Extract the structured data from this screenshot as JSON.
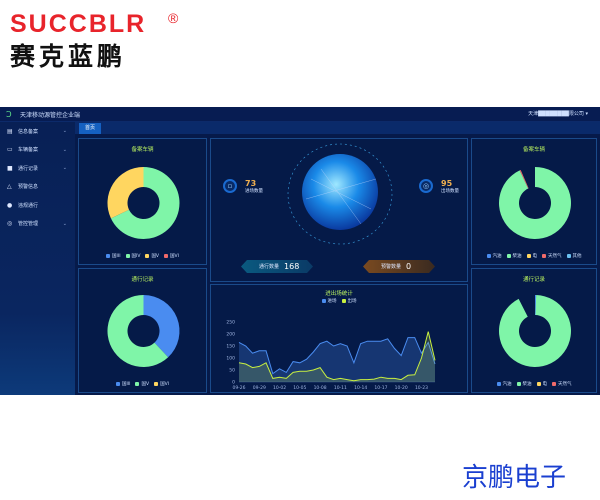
{
  "logo": {
    "en": "SUCCBLR",
    "registered": "®",
    "cn": "赛克蓝鹏"
  },
  "brand": "京鹏电子",
  "app": {
    "title": "天津移动源管控企业端",
    "user": "天津████████限公司",
    "tab": "首页",
    "sidebar": [
      {
        "label": "信息备案",
        "icon": "file-icon",
        "expand": true
      },
      {
        "label": "车辆备案",
        "icon": "truck-icon",
        "expand": true
      },
      {
        "label": "通行记录",
        "icon": "record-icon",
        "expand": true
      },
      {
        "label": "预警信息",
        "icon": "bell-icon",
        "expand": false
      },
      {
        "label": "违规通行",
        "icon": "pin-icon",
        "expand": false
      },
      {
        "label": "管控管理",
        "icon": "gear-icon",
        "expand": true
      }
    ]
  },
  "center": {
    "in_count": "73",
    "in_label": "进场数量",
    "out_count": "95",
    "out_label": "出场数量",
    "pass_label": "通行数量",
    "pass_value": "168",
    "warn_label": "预警数量",
    "warn_value": "0"
  },
  "colors": {
    "green": "#7ff5a8",
    "yellow": "#ffd660",
    "blue": "#4a8cf0",
    "red": "#f06a6a",
    "lightblue": "#6ac0f0"
  },
  "chart_data": [
    {
      "type": "pie",
      "title": "备案车辆",
      "labels": [
        "国III",
        "国IV",
        "国V",
        "国VI"
      ],
      "values": [
        0,
        68,
        32,
        0
      ],
      "colors": [
        "#4a8cf0",
        "#7ff5a8",
        "#ffd660",
        "#f06a6a"
      ]
    },
    {
      "type": "pie",
      "title": "通行记录",
      "labels": [
        "国III",
        "国V",
        "国VI"
      ],
      "values": [
        38,
        62,
        0
      ],
      "colors": [
        "#4a8cf0",
        "#7ff5a8",
        "#ffd660"
      ]
    },
    {
      "type": "pie",
      "title": "备案车辆",
      "labels": [
        "汽油",
        "柴油",
        "电",
        "天然气",
        "其他"
      ],
      "values": [
        0,
        93,
        0,
        0.5,
        0
      ],
      "colors": [
        "#4a8cf0",
        "#7ff5a8",
        "#ffd660",
        "#f06a6a",
        "#6ac0f0"
      ]
    },
    {
      "type": "pie",
      "title": "通行记录",
      "labels": [
        "汽油",
        "柴油",
        "电",
        "天然气"
      ],
      "values": [
        0.5,
        92,
        0,
        0
      ],
      "colors": [
        "#4a8cf0",
        "#7ff5a8",
        "#ffd660",
        "#f06a6a"
      ]
    },
    {
      "type": "area",
      "title": "进出场统计",
      "ylim": [
        0,
        250
      ],
      "yticks": [
        0,
        50,
        100,
        150,
        200,
        250
      ],
      "xticks": [
        "09-26",
        "09-29",
        "10-02",
        "10-05",
        "10-08",
        "10-11",
        "10-14",
        "10-17",
        "10-20",
        "10-23"
      ],
      "series": [
        {
          "name": "进场",
          "color": "#4a8cf0",
          "values": [
            165,
            150,
            120,
            130,
            130,
            35,
            55,
            40,
            85,
            80,
            95,
            125,
            160,
            170,
            150,
            160,
            150,
            80,
            160,
            170,
            170,
            170,
            180,
            140,
            110,
            185,
            185,
            120,
            165,
            75
          ]
        },
        {
          "name": "出场",
          "color": "#c8f040",
          "values": [
            80,
            75,
            60,
            65,
            80,
            15,
            20,
            15,
            40,
            45,
            45,
            50,
            60,
            20,
            10,
            15,
            10,
            5,
            10,
            10,
            12,
            20,
            15,
            15,
            10,
            28,
            30,
            100,
            210,
            90
          ]
        }
      ]
    }
  ]
}
